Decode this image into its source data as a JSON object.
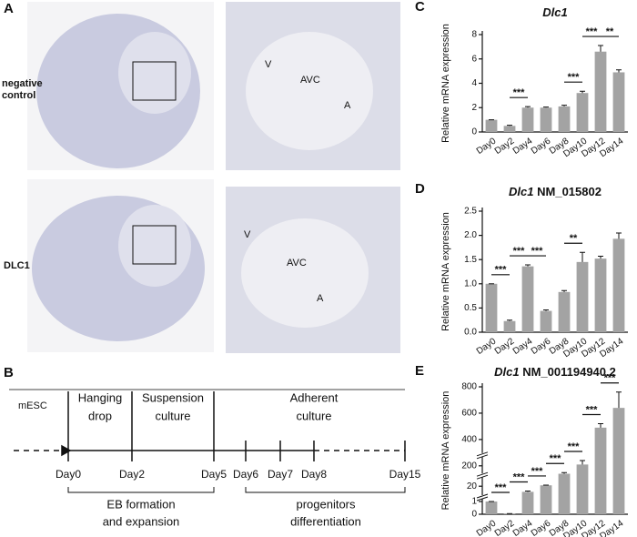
{
  "panel_labels": [
    "A",
    "B",
    "C",
    "D",
    "E"
  ],
  "histology": {
    "rows": [
      {
        "label": [
          "negative",
          "control"
        ],
        "marks": [
          "V",
          "AVC",
          "A"
        ]
      },
      {
        "label": [
          "DLC1"
        ],
        "marks": [
          "V",
          "AVC",
          "A"
        ]
      }
    ]
  },
  "timeline": {
    "stages": [
      "mESC",
      [
        "Hanging",
        "drop"
      ],
      [
        "Suspension",
        "culture"
      ],
      [
        "Adherent",
        "culture"
      ]
    ],
    "days": [
      "Day0",
      "Day2",
      "Day5",
      "Day6",
      "Day7",
      "Day8",
      "Day15"
    ],
    "phases": [
      [
        "EB formation",
        "and expansion"
      ],
      [
        "progenitors",
        "differentiation"
      ]
    ]
  },
  "chart_data": [
    {
      "type": "bar",
      "title": {
        "gene": "Dlc1"
      },
      "y_label": "Relative mRNA expression",
      "color": "#a3a3a3",
      "categories": [
        "Day0",
        "Day2",
        "Day4",
        "Day6",
        "Day8",
        "Day10",
        "Day12",
        "Day14"
      ],
      "values": [
        1,
        0.5,
        2.0,
        2.0,
        2.1,
        3.2,
        6.6,
        4.9
      ],
      "errors": [
        0,
        0.05,
        0.08,
        0.05,
        0.1,
        0.15,
        0.5,
        0.2
      ],
      "ylim": [
        0,
        8
      ],
      "yticks": [
        0,
        2,
        4,
        6,
        8
      ],
      "significance": [
        {
          "text": "***",
          "from": "Day2",
          "to": "Day4"
        },
        {
          "text": "***",
          "from": "Day8",
          "to": "Day10"
        },
        {
          "text": "***",
          "from": "Day10",
          "to": "Day12"
        },
        {
          "text": "**",
          "from": "Day12",
          "to": "Day14"
        }
      ]
    },
    {
      "type": "bar",
      "title": {
        "gene": "Dlc1",
        "transcript": "NM_015802"
      },
      "y_label": "Relative mRNA expression",
      "color": "#a3a3a3",
      "categories": [
        "Day0",
        "Day2",
        "Day4",
        "Day6",
        "Day8",
        "Day10",
        "Day12",
        "Day14"
      ],
      "values": [
        1.0,
        0.23,
        1.36,
        0.44,
        0.83,
        1.45,
        1.52,
        1.93
      ],
      "errors": [
        0,
        0.02,
        0.03,
        0.02,
        0.03,
        0.2,
        0.05,
        0.12
      ],
      "ylim": [
        0,
        2.5
      ],
      "yticks": [
        {
          "value": 0,
          "label": "0.0"
        },
        0.5,
        {
          "value": 1,
          "label": "1.0"
        },
        1.5,
        {
          "value": 2,
          "label": "2.0"
        },
        2.5
      ],
      "significance": [
        {
          "text": "***",
          "from": "Day0",
          "to": "Day2"
        },
        {
          "text": "***",
          "from": "Day2",
          "to": "Day4"
        },
        {
          "text": "***",
          "from": "Day4",
          "to": "Day6"
        },
        {
          "text": "**",
          "from": "Day8",
          "to": "Day10"
        }
      ]
    },
    {
      "type": "bar",
      "title": {
        "gene": "Dlc1",
        "transcript": "NM_001194940.2"
      },
      "y_label": "Relative mRNA expression",
      "color": "#a3a3a3",
      "categories": [
        "Day0",
        "Day2",
        "Day4",
        "Day6",
        "Day8",
        "Day10",
        "Day12",
        "Day14"
      ],
      "values": [
        1,
        0.05,
        13,
        28,
        130,
        210,
        490,
        640
      ],
      "errors": [
        0,
        0,
        1,
        2,
        10,
        30,
        30,
        120
      ],
      "ylim": [
        0,
        800
      ],
      "yticks": [
        0,
        1,
        20,
        200,
        400,
        600,
        800
      ],
      "axis_breaks": [
        [
          0,
          1
        ],
        [
          1,
          20
        ],
        [
          20,
          200
        ],
        [
          200,
          800
        ]
      ],
      "significance": [
        {
          "text": "***",
          "from": "Day0",
          "to": "Day2"
        },
        {
          "text": "***",
          "from": "Day2",
          "to": "Day4"
        },
        {
          "text": "***",
          "from": "Day4",
          "to": "Day6"
        },
        {
          "text": "***",
          "from": "Day6",
          "to": "Day8"
        },
        {
          "text": "***",
          "from": "Day8",
          "to": "Day10"
        },
        {
          "text": "***",
          "from": "Day10",
          "to": "Day12"
        },
        {
          "text": "***",
          "from": "Day12",
          "to": "Day14"
        }
      ]
    }
  ]
}
